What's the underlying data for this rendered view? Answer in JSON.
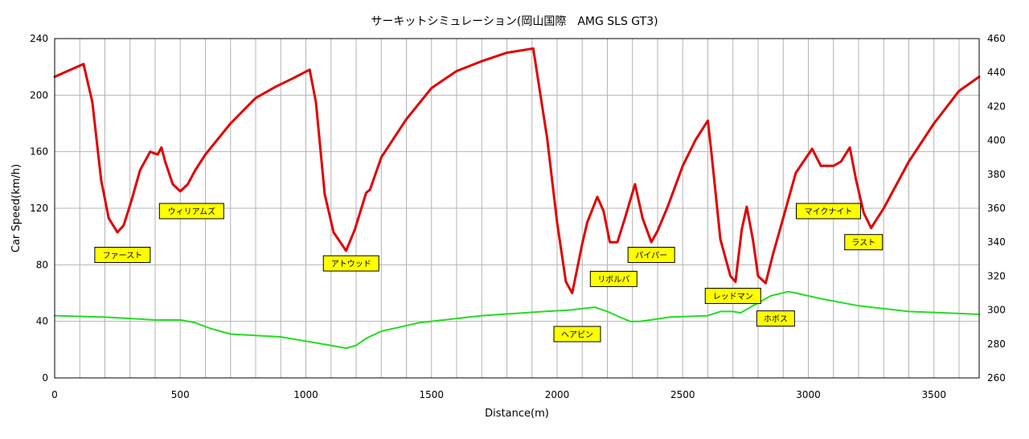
{
  "chart_data": {
    "type": "line",
    "title": "サーキットシミュレーション(岡山国際　AMG SLS GT3)",
    "xlabel": "Distance(m)",
    "ylabel": "Car Speed(km/h)",
    "xlim": [
      0,
      3680
    ],
    "ylim": [
      0,
      240
    ],
    "y2lim": [
      260,
      460
    ],
    "x_ticks": [
      0,
      500,
      1000,
      1500,
      2000,
      2500,
      3000,
      3500
    ],
    "y_ticks": [
      0,
      40,
      80,
      120,
      160,
      200,
      240
    ],
    "y2_ticks": [
      260,
      280,
      300,
      320,
      340,
      360,
      380,
      400,
      420,
      440,
      460
    ],
    "grid": true,
    "series": [
      {
        "color": "#e00000",
        "axis": "left",
        "x": [
          0,
          115,
          150,
          185,
          215,
          250,
          275,
          305,
          340,
          380,
          410,
          425,
          440,
          470,
          500,
          530,
          560,
          600,
          700,
          800,
          880,
          950,
          1015,
          1040,
          1075,
          1110,
          1160,
          1195,
          1240,
          1255,
          1300,
          1400,
          1500,
          1600,
          1700,
          1800,
          1905,
          1960,
          2000,
          2035,
          2060,
          2100,
          2120,
          2160,
          2185,
          2210,
          2240,
          2270,
          2310,
          2340,
          2375,
          2400,
          2440,
          2500,
          2550,
          2600,
          2615,
          2650,
          2690,
          2710,
          2735,
          2755,
          2780,
          2800,
          2830,
          2860,
          2900,
          2950,
          3015,
          3050,
          3100,
          3130,
          3165,
          3190,
          3220,
          3250,
          3300,
          3400,
          3500,
          3600,
          3680
        ],
        "y": [
          213,
          222,
          195,
          140,
          113,
          103,
          108,
          125,
          147,
          160,
          158,
          163,
          153,
          137,
          132,
          137,
          147,
          158,
          180,
          198,
          206,
          212,
          218,
          195,
          130,
          103,
          90,
          105,
          131,
          133,
          156,
          183,
          205,
          217,
          224,
          230,
          233,
          170,
          110,
          68,
          60,
          95,
          110,
          128,
          118,
          96,
          96,
          113,
          137,
          113,
          96,
          104,
          121,
          150,
          168,
          182,
          158,
          98,
          72,
          68,
          105,
          121,
          97,
          72,
          67,
          88,
          113,
          145,
          162,
          150,
          150,
          153,
          163,
          140,
          117,
          106,
          120,
          153,
          180,
          203,
          213
        ]
      },
      {
        "color": "#22dd22",
        "axis": "left",
        "x": [
          0,
          200,
          400,
          500,
          560,
          620,
          700,
          900,
          1000,
          1100,
          1160,
          1200,
          1240,
          1300,
          1450,
          1700,
          1950,
          2050,
          2150,
          2200,
          2250,
          2290,
          2330,
          2450,
          2600,
          2650,
          2700,
          2730,
          2780,
          2850,
          2920,
          2950,
          3050,
          3200,
          3400,
          3680
        ],
        "y": [
          44,
          43,
          41,
          41,
          39,
          35,
          31,
          29,
          26,
          23,
          21,
          23,
          28,
          33,
          39,
          44,
          47,
          48,
          50,
          47,
          43,
          40,
          40,
          43,
          44,
          47,
          47,
          46,
          51,
          58,
          61,
          60,
          56,
          51,
          47,
          45
        ]
      }
    ],
    "annotations": [
      {
        "text": "ファースト",
        "x": 270,
        "y": 87
      },
      {
        "text": "ウィリアムズ",
        "x": 545,
        "y": 118
      },
      {
        "text": "アトウッド",
        "x": 1180,
        "y": 81
      },
      {
        "text": "ヘアピン",
        "x": 2080,
        "y": 31
      },
      {
        "text": "リボルバ",
        "x": 2225,
        "y": 70
      },
      {
        "text": "パイパー",
        "x": 2375,
        "y": 87
      },
      {
        "text": "レッドマン",
        "x": 2700,
        "y": 58
      },
      {
        "text": "ホボス",
        "x": 2870,
        "y": 42
      },
      {
        "text": "マイクナイト",
        "x": 3080,
        "y": 118
      },
      {
        "text": "ラスト",
        "x": 3220,
        "y": 96
      }
    ],
    "corner_labels": {
      "bottom_left": "0",
      "bottom_right": "260"
    }
  }
}
